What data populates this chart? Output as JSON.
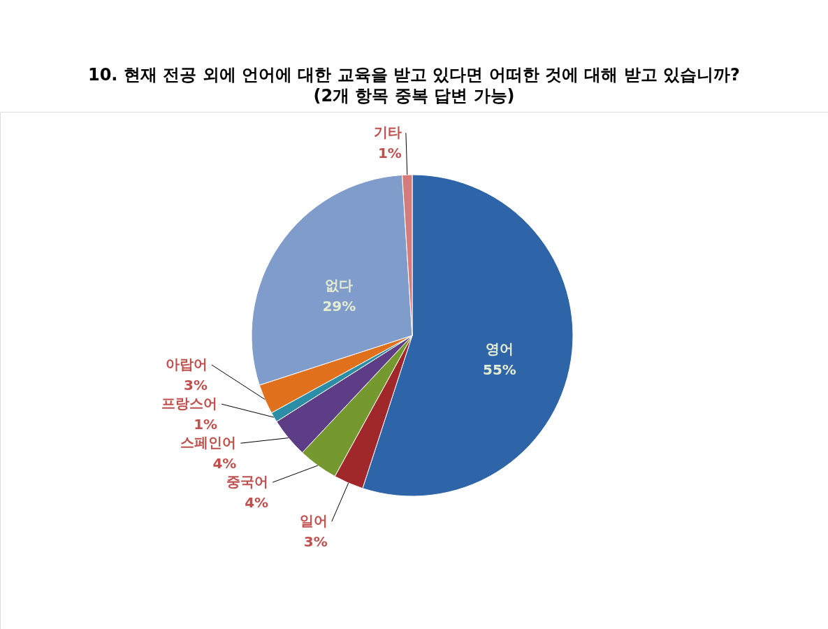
{
  "chart_data": {
    "type": "pie",
    "title": "10. 현재 전공 외에 언어에 대한 교육을 받고 있다면 어떠한 것에 대해 받고 있습니까?",
    "subtitle": "(2개 항목 중복 답변 가능)",
    "categories": [
      "영어",
      "일어",
      "중국어",
      "스페인어",
      "프랑스어",
      "아랍어",
      "없다",
      "기타"
    ],
    "values": [
      55,
      3,
      4,
      4,
      1,
      3,
      29,
      1
    ],
    "value_labels": [
      "55%",
      "3%",
      "4%",
      "4%",
      "1%",
      "3%",
      "29%",
      "1%"
    ],
    "colors": [
      "#2e64a8",
      "#a0282a",
      "#76992f",
      "#5c3d86",
      "#2b8ea6",
      "#e0701c",
      "#7f9ccb",
      "#d47c7c"
    ]
  }
}
